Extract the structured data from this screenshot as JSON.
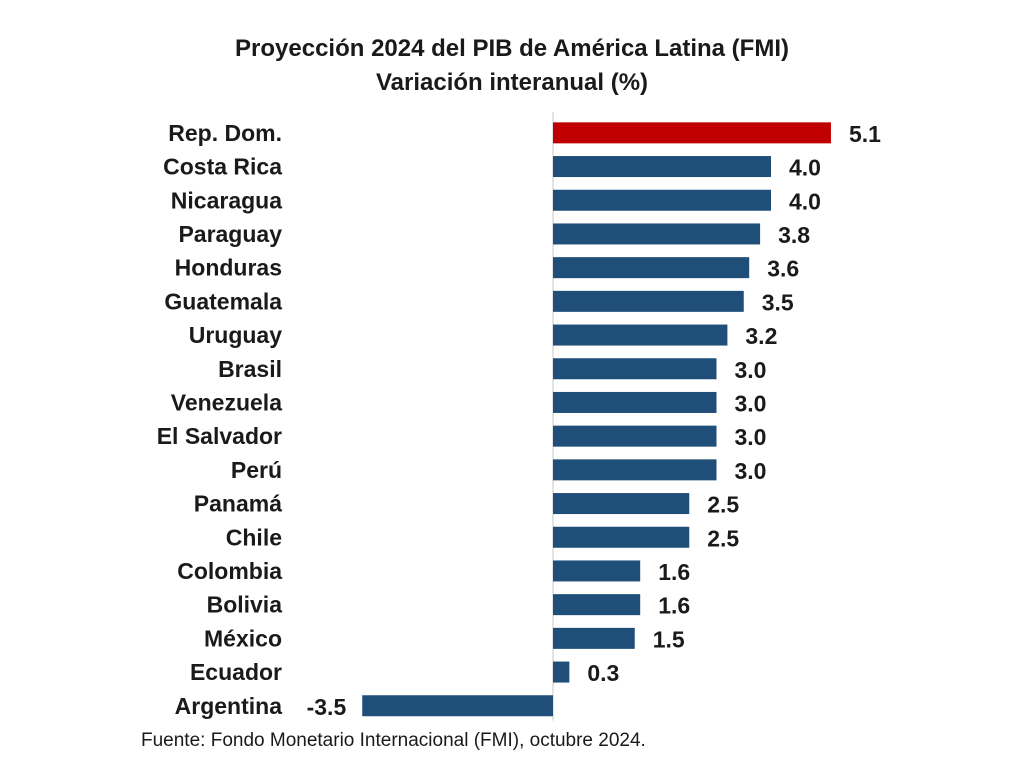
{
  "chart_data": {
    "type": "bar",
    "orientation": "horizontal",
    "title": "Proyección 2024 del PIB de América Latina (FMI)",
    "subtitle": "Variación interanual (%)",
    "categories": [
      "Rep. Dom.",
      "Costa Rica",
      "Nicaragua",
      "Paraguay",
      "Honduras",
      "Guatemala",
      "Uruguay",
      "Brasil",
      "Venezuela",
      "El Salvador",
      "Perú",
      "Panamá",
      "Chile",
      "Colombia",
      "Bolivia",
      "México",
      "Ecuador",
      "Argentina"
    ],
    "values": [
      5.1,
      4.0,
      4.0,
      3.8,
      3.6,
      3.5,
      3.2,
      3.0,
      3.0,
      3.0,
      3.0,
      2.5,
      2.5,
      1.6,
      1.6,
      1.5,
      0.3,
      -3.5
    ],
    "value_labels": [
      "5.1",
      "4.0",
      "4.0",
      "3.8",
      "3.6",
      "3.5",
      "3.2",
      "3.0",
      "3.0",
      "3.0",
      "3.0",
      "2.5",
      "2.5",
      "1.6",
      "1.6",
      "1.5",
      "0.3",
      "-3.5"
    ],
    "highlight_category": "Rep. Dom.",
    "xlim": [
      -3.5,
      5.1
    ],
    "grid": false,
    "legend": "none",
    "colors": {
      "bar": "#1f4e79",
      "highlight": "#c00000",
      "text": "#1a1a1a",
      "axis": "#d0d0d0"
    }
  },
  "source": "Fuente: Fondo Monetario Internacional (FMI), octubre 2024."
}
